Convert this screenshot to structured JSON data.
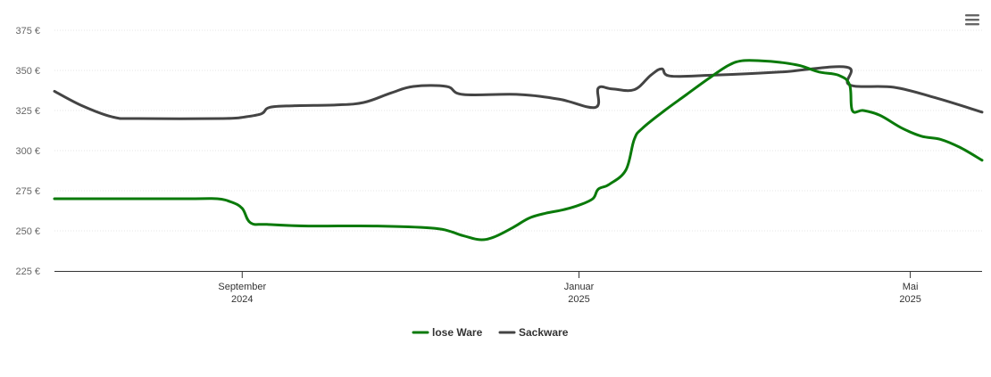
{
  "chart_data": {
    "type": "line",
    "y_axis": {
      "min": 225,
      "max": 375,
      "ticks": [
        225,
        250,
        275,
        300,
        325,
        350,
        375
      ],
      "tick_suffix": " €",
      "tick_labels": [
        "225 €",
        "250 €",
        "275 €",
        "300 €",
        "325 €",
        "350 €",
        "375 €"
      ]
    },
    "x_axis": {
      "start": "2024-06-25",
      "end": "2025-05-27",
      "ticks": [
        {
          "date": "2024-09-01",
          "month": "September",
          "year": "2024"
        },
        {
          "date": "2025-01-01",
          "month": "Januar",
          "year": "2025"
        },
        {
          "date": "2025-05-01",
          "month": "Mai",
          "year": "2025"
        }
      ]
    },
    "grid": true,
    "legend_position": "bottom-center",
    "series": [
      {
        "name": "lose Ware",
        "color": "#0a7a0a",
        "points": [
          [
            "2024-06-25",
            270
          ],
          [
            "2024-07-20",
            270
          ],
          [
            "2024-08-15",
            270
          ],
          [
            "2024-08-23",
            270
          ],
          [
            "2024-08-28",
            268
          ],
          [
            "2024-09-01",
            264
          ],
          [
            "2024-09-04",
            255
          ],
          [
            "2024-09-10",
            254
          ],
          [
            "2024-09-25",
            253
          ],
          [
            "2024-10-20",
            253
          ],
          [
            "2024-11-10",
            251.5
          ],
          [
            "2024-11-20",
            247
          ],
          [
            "2024-11-26",
            244.5
          ],
          [
            "2024-12-01",
            246
          ],
          [
            "2024-12-08",
            252
          ],
          [
            "2024-12-14",
            258
          ],
          [
            "2024-12-20",
            261
          ],
          [
            "2024-12-26",
            263
          ],
          [
            "2025-01-01",
            266
          ],
          [
            "2025-01-06",
            270
          ],
          [
            "2025-01-08",
            276
          ],
          [
            "2025-01-12",
            279
          ],
          [
            "2025-01-18",
            288
          ],
          [
            "2025-01-21",
            307
          ],
          [
            "2025-01-24",
            314
          ],
          [
            "2025-02-01",
            325
          ],
          [
            "2025-02-09",
            335
          ],
          [
            "2025-02-17",
            345
          ],
          [
            "2025-02-24",
            353
          ],
          [
            "2025-03-01",
            356
          ],
          [
            "2025-03-08",
            356
          ],
          [
            "2025-03-15",
            355
          ],
          [
            "2025-03-22",
            353
          ],
          [
            "2025-03-29",
            349
          ],
          [
            "2025-04-05",
            347
          ],
          [
            "2025-04-09",
            341
          ],
          [
            "2025-04-10",
            325
          ],
          [
            "2025-04-14",
            325
          ],
          [
            "2025-04-20",
            322
          ],
          [
            "2025-04-28",
            314
          ],
          [
            "2025-05-05",
            309
          ],
          [
            "2025-05-12",
            307
          ],
          [
            "2025-05-19",
            302
          ],
          [
            "2025-05-27",
            294
          ]
        ]
      },
      {
        "name": "Sackware",
        "color": "#444444",
        "points": [
          [
            "2024-06-25",
            337
          ],
          [
            "2024-07-05",
            328
          ],
          [
            "2024-07-16",
            321
          ],
          [
            "2024-07-25",
            320
          ],
          [
            "2024-08-25",
            320
          ],
          [
            "2024-09-02",
            321
          ],
          [
            "2024-09-08",
            323
          ],
          [
            "2024-09-11",
            327
          ],
          [
            "2024-09-20",
            328
          ],
          [
            "2024-10-05",
            328.5
          ],
          [
            "2024-10-15",
            330
          ],
          [
            "2024-10-25",
            336
          ],
          [
            "2024-11-02",
            340
          ],
          [
            "2024-11-14",
            340
          ],
          [
            "2024-11-20",
            335
          ],
          [
            "2024-12-10",
            335
          ],
          [
            "2024-12-25",
            332
          ],
          [
            "2025-01-07",
            327
          ],
          [
            "2025-01-08",
            339
          ],
          [
            "2025-01-13",
            338.5
          ],
          [
            "2025-01-21",
            338
          ],
          [
            "2025-01-27",
            347
          ],
          [
            "2025-01-31",
            351
          ],
          [
            "2025-02-03",
            346.5
          ],
          [
            "2025-02-18",
            347
          ],
          [
            "2025-03-15",
            349
          ],
          [
            "2025-04-08",
            352
          ],
          [
            "2025-04-09",
            341
          ],
          [
            "2025-04-25",
            339.5
          ],
          [
            "2025-05-10",
            333
          ],
          [
            "2025-05-27",
            324
          ]
        ]
      }
    ]
  },
  "menu": {
    "icon": "hamburger-menu-icon"
  }
}
